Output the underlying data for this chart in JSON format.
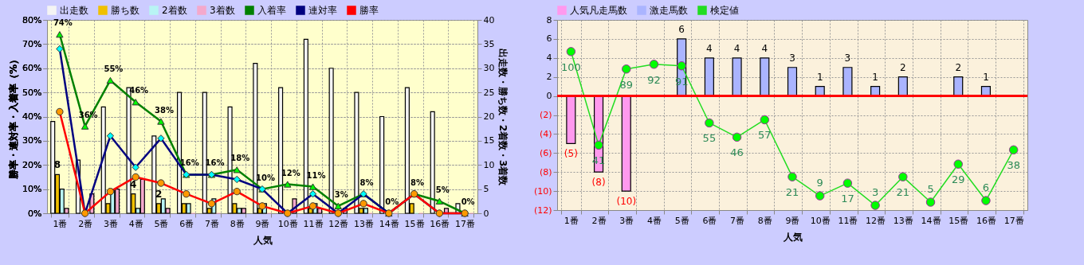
{
  "chart_data": [
    {
      "type": "bar",
      "categories": [
        "1番",
        "2番",
        "3番",
        "4番",
        "5番",
        "6番",
        "7番",
        "8番",
        "9番",
        "10番",
        "11番",
        "12番",
        "13番",
        "14番",
        "15番",
        "16番",
        "17番"
      ],
      "xlabel": "人気",
      "ylabel": "勝率・連対率・入着率（%）",
      "y2label": "出走数・勝ち数・2着数・3着数",
      "ylim": [
        0,
        80
      ],
      "yticks": [
        {
          "value": 0,
          "label": "0%"
        },
        {
          "value": 10,
          "label": "10%"
        },
        {
          "value": 20,
          "label": "20%"
        },
        {
          "value": 30,
          "label": "30%"
        },
        {
          "value": 40,
          "label": "40%"
        },
        {
          "value": 50,
          "label": "50%"
        },
        {
          "value": 60,
          "label": "60%"
        },
        {
          "value": 70,
          "label": "70%"
        },
        {
          "value": 80,
          "label": "80%"
        }
      ],
      "y2lim": [
        0,
        40
      ],
      "y2ticks": [
        0,
        5,
        10,
        15,
        20,
        25,
        30,
        35,
        40
      ],
      "grid": true,
      "legend": "top",
      "series": [
        {
          "name": "出走数",
          "color": "#f4f4f4",
          "axis": "y2",
          "values": [
            19,
            11,
            22,
            26,
            16,
            25,
            25,
            22,
            31,
            26,
            36,
            30,
            25,
            20,
            26,
            21,
            2
          ]
        },
        {
          "name": "勝ち数",
          "color": "#f0c000",
          "axis": "y2",
          "values": [
            8,
            0,
            2,
            4,
            2,
            2,
            1,
            2,
            1,
            0,
            1,
            0,
            1,
            0,
            2,
            0,
            0
          ],
          "value_labels": [
            "8",
            null,
            null,
            "4",
            "2",
            null,
            null,
            null,
            null,
            null,
            null,
            null,
            null,
            null,
            null,
            null,
            null
          ]
        },
        {
          "name": "2着数",
          "color": "#b8f4f4",
          "axis": "y2",
          "values": [
            5,
            0,
            5,
            1,
            3,
            2,
            3,
            1,
            2,
            0,
            2,
            0,
            1,
            0,
            0,
            0,
            0
          ]
        },
        {
          "name": "3着数",
          "color": "#f4a8cc",
          "axis": "y2",
          "values": [
            1,
            4,
            5,
            7,
            1,
            0,
            0,
            1,
            0,
            3,
            1,
            1,
            0,
            0,
            0,
            1,
            0
          ]
        },
        {
          "name": "入着率",
          "type": "line",
          "color": "#008000",
          "marker": "triangle",
          "values": [
            74,
            36,
            55,
            46,
            38,
            16,
            16,
            18,
            10,
            12,
            11,
            3,
            8,
            0,
            8,
            5,
            0
          ],
          "value_labels": [
            "74%",
            "36%",
            "55%",
            "46%",
            "38%",
            "16%",
            "16%",
            "18%",
            "10%",
            "12%",
            "11%",
            "3%",
            "8%",
            "0%",
            "8%",
            "5%",
            "0%"
          ]
        },
        {
          "name": "連対率",
          "type": "line",
          "color": "#000080",
          "marker": "diamond",
          "values": [
            68,
            0,
            32,
            19,
            31,
            16,
            16,
            14,
            10,
            0,
            8,
            0,
            8,
            0,
            8,
            0,
            0
          ]
        },
        {
          "name": "勝率",
          "type": "line",
          "color": "#ff0000",
          "marker": "circle",
          "values": [
            42,
            0,
            9,
            15,
            12.5,
            8,
            4,
            9,
            3,
            0,
            3,
            0,
            4,
            0,
            8,
            0,
            0
          ]
        }
      ]
    },
    {
      "type": "bar",
      "categories": [
        "1番",
        "2番",
        "3番",
        "4番",
        "5番",
        "6番",
        "7番",
        "8番",
        "9番",
        "10番",
        "11番",
        "12番",
        "13番",
        "14番",
        "15番",
        "16番",
        "17番"
      ],
      "xlabel": "人気",
      "ylim": [
        -12,
        8
      ],
      "yticks": [
        8,
        6,
        4,
        2,
        0,
        {
          "value": -2,
          "label": "(2)"
        },
        {
          "value": -4,
          "label": "(4)"
        },
        {
          "value": -6,
          "label": "(6)"
        },
        {
          "value": -8,
          "label": "(8)"
        },
        {
          "value": -10,
          "label": "(10)"
        },
        {
          "value": -12,
          "label": "(12)"
        }
      ],
      "y2lim": [
        0,
        120
      ],
      "grid": true,
      "legend": "top",
      "ref_lines": [
        {
          "axis": "y",
          "value": 0,
          "color": "#ff0000"
        }
      ],
      "series": [
        {
          "name": "人気凡走馬数",
          "color": "#ff99ee",
          "values": [
            -5,
            -8,
            -10,
            null,
            null,
            null,
            null,
            null,
            null,
            null,
            null,
            null,
            null,
            null,
            null,
            null,
            null
          ],
          "value_labels": [
            "(5)",
            "(8)",
            "(10)",
            null,
            null,
            null,
            null,
            null,
            null,
            null,
            null,
            null,
            null,
            null,
            null,
            null,
            null
          ]
        },
        {
          "name": "激走馬数",
          "color": "#aab4ff",
          "values": [
            null,
            null,
            null,
            null,
            6,
            4,
            4,
            4,
            3,
            1,
            3,
            1,
            2,
            null,
            2,
            1,
            null
          ],
          "value_labels": [
            null,
            null,
            null,
            null,
            "6",
            "4",
            "4",
            "4",
            "3",
            "1",
            "3",
            "1",
            "2",
            null,
            "2",
            "1",
            null
          ]
        },
        {
          "name": "検定値",
          "type": "line",
          "axis": "y2",
          "color": "#22dd22",
          "marker": "circle",
          "data_labels": true,
          "values": [
            100,
            41,
            89,
            92,
            91,
            55,
            46,
            57,
            21,
            9,
            17,
            3,
            21,
            5,
            29,
            6,
            38
          ]
        }
      ]
    }
  ]
}
